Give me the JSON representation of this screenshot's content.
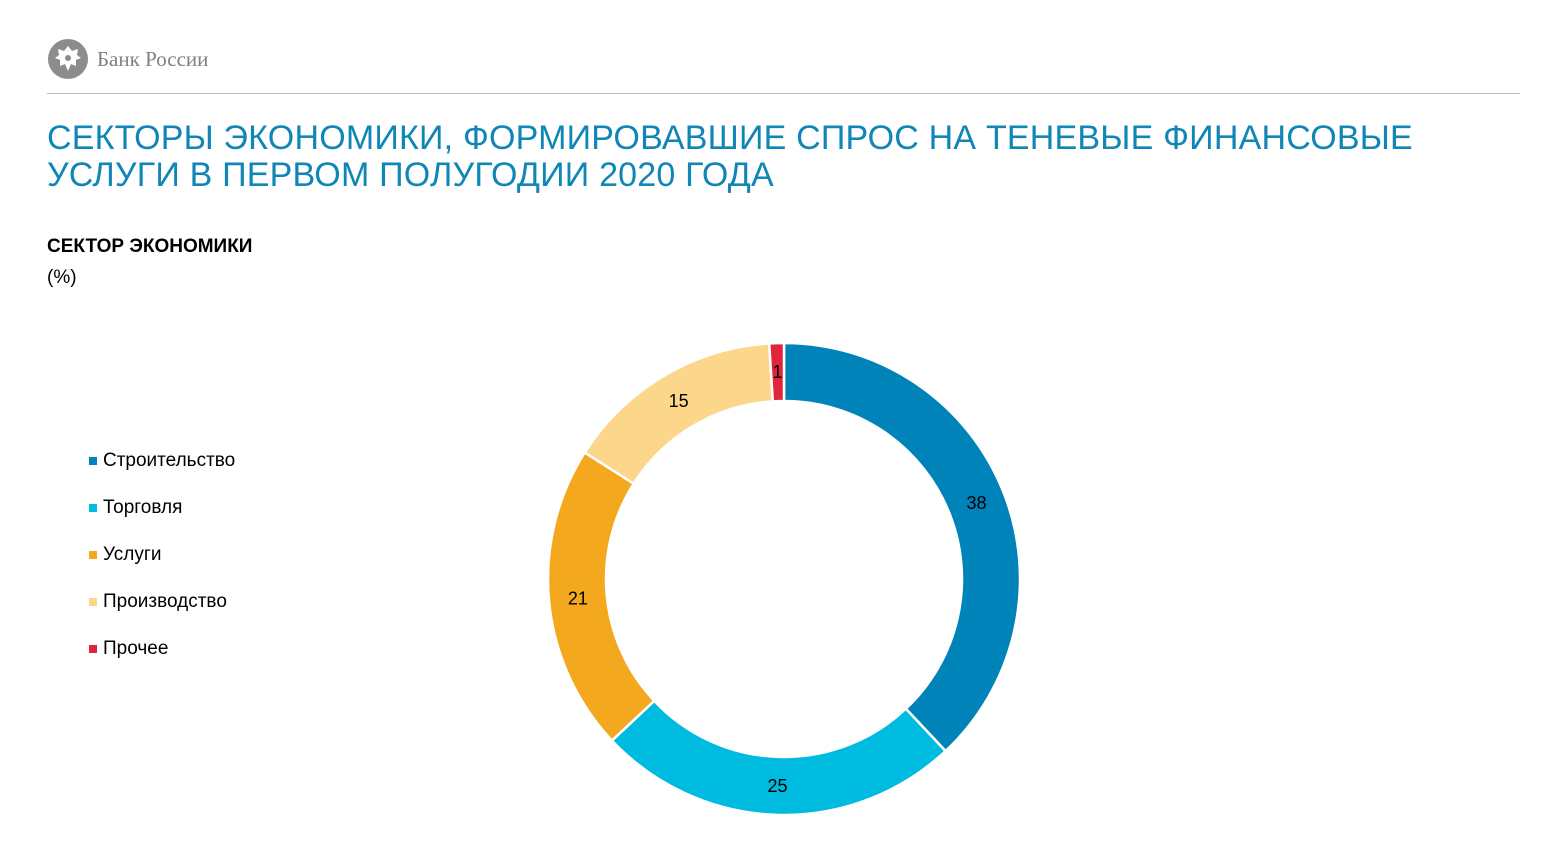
{
  "header": {
    "logo_text": "Банк России",
    "logo_icon": "double-headed-eagle-emblem"
  },
  "title": "Секторы экономики, формировавшие спрос на теневые финансовые услуги в первом полугодии 2020 года",
  "chart_data": {
    "type": "pie",
    "donut": true,
    "title": "СЕКТОР ЭКОНОМИКИ",
    "unit": "(%)",
    "legend_position": "left",
    "categories": [
      "Строительство",
      "Торговля",
      "Услуги",
      "Производство",
      "Прочее"
    ],
    "values": [
      38,
      25,
      21,
      15,
      1
    ],
    "colors": [
      "#0083b8",
      "#00bbe0",
      "#f4a81d",
      "#fcd68a",
      "#e0243a"
    ]
  }
}
